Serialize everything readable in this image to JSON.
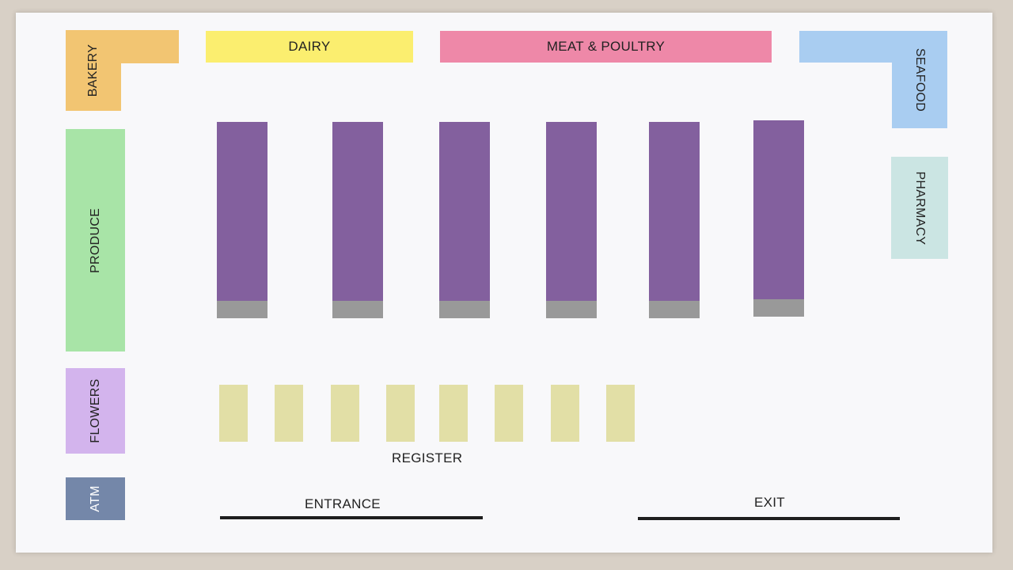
{
  "departments": {
    "bakery": {
      "label": "BAKERY",
      "color": "#f2c572"
    },
    "dairy": {
      "label": "DAIRY",
      "color": "#fbee6f"
    },
    "meat": {
      "label": "MEAT & POULTRY",
      "color": "#ee88a8"
    },
    "seafood": {
      "label": "SEAFOOD",
      "color": "#a9cdf1"
    },
    "pharmacy": {
      "label": "PHARMACY",
      "color": "#cbe5e3"
    },
    "produce": {
      "label": "PRODUCE",
      "color": "#a8e4a7"
    },
    "flowers": {
      "label": "FLOWERS",
      "color": "#d3b4ed"
    },
    "atm": {
      "label": "ATM",
      "color": "#7487a9"
    }
  },
  "aisle_color": "#83609e",
  "aisle_end_color": "#999999",
  "register_color": "#e2dfa6",
  "register_label": "REGISTER",
  "entrance_label": "ENTRANCE",
  "exit_label": "EXIT"
}
